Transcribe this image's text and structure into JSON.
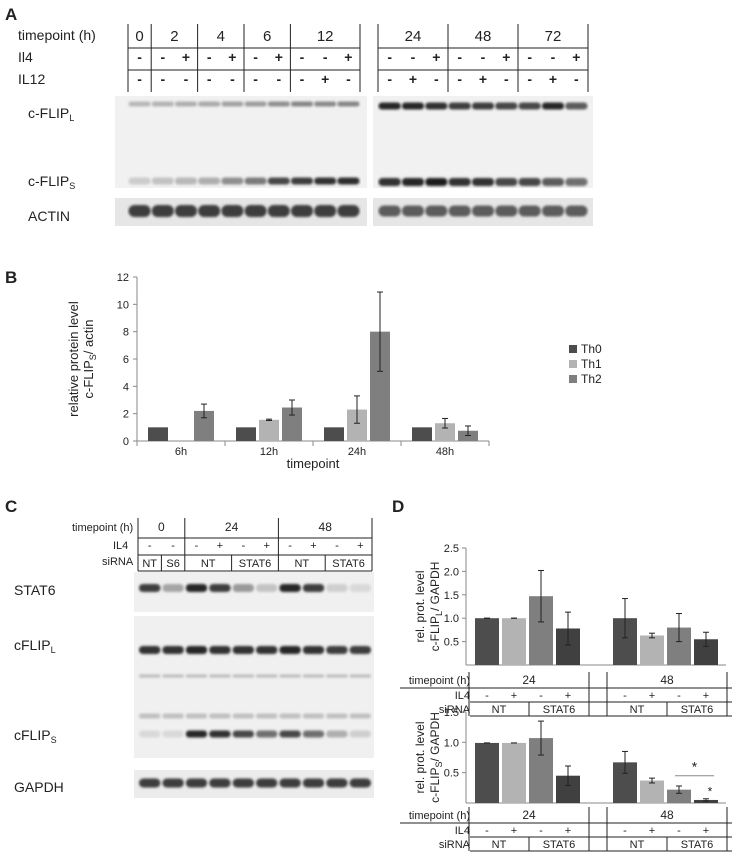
{
  "panels": {
    "A": {
      "label": "A",
      "row_labels": {
        "timepoint": "timepoint (h)",
        "il4": "Il4",
        "il12": "IL12"
      },
      "timepoints": [
        {
          "label": "0",
          "il4": [
            "-"
          ],
          "il12": [
            "-"
          ]
        },
        {
          "label": "2",
          "il4": [
            "-",
            "+"
          ],
          "il12": [
            "-",
            "-"
          ]
        },
        {
          "label": "4",
          "il4": [
            "-",
            "+"
          ],
          "il12": [
            "-",
            "-"
          ]
        },
        {
          "label": "6",
          "il4": [
            "-",
            "+"
          ],
          "il12": [
            "-",
            "-"
          ]
        },
        {
          "label": "12",
          "il4": [
            "-",
            "-",
            "+"
          ],
          "il12": [
            "-",
            "+",
            "-"
          ]
        },
        {
          "label": "24",
          "il4": [
            "-",
            "-",
            "+"
          ],
          "il12": [
            "-",
            "+",
            "-"
          ]
        },
        {
          "label": "48",
          "il4": [
            "-",
            "-",
            "+"
          ],
          "il12": [
            "-",
            "+",
            "-"
          ]
        },
        {
          "label": "72",
          "il4": [
            "-",
            "-",
            "+"
          ],
          "il12": [
            "-",
            "+",
            "-"
          ]
        }
      ],
      "blots": {
        "flipl": {
          "main": "c-FLIP",
          "sub": "L"
        },
        "flips": {
          "main": "c-FLIP",
          "sub": "S"
        },
        "actin": "ACTIN"
      }
    },
    "B": {
      "label": "B",
      "chart_data": {
        "type": "bar",
        "categories": [
          "6h",
          "12h",
          "24h",
          "48h"
        ],
        "xlabel": "timepoint",
        "ylabel_line1": "relative protein level",
        "ylabel_line2_main": "c-FLIP",
        "ylabel_line2_sub": "S",
        "ylabel_line2_rest": "/ actin",
        "ylim": [
          0,
          12
        ],
        "yticks": [
          0,
          2,
          4,
          6,
          8,
          10,
          12
        ],
        "legend_position": "right",
        "series": [
          {
            "name": "Th0",
            "color": "#4d4d4d",
            "values": [
              1,
              1,
              1,
              1
            ],
            "errors": [
              0,
              0,
              0,
              0
            ]
          },
          {
            "name": "Th1",
            "color": "#b3b3b3",
            "values": [
              null,
              1.55,
              2.3,
              1.3
            ],
            "errors": [
              0,
              0.05,
              1.0,
              0.35
            ]
          },
          {
            "name": "Th2",
            "color": "#7f7f7f",
            "values": [
              2.2,
              2.45,
              8.0,
              0.75
            ],
            "errors": [
              0.5,
              0.55,
              2.9,
              0.35
            ]
          }
        ]
      }
    },
    "C": {
      "label": "C",
      "row_labels": {
        "timepoint": "timepoint (h)",
        "il4": "IL4",
        "sirna": "siRNA"
      },
      "groups": [
        {
          "timepoint": "0",
          "il4": [
            "-",
            "-"
          ],
          "sirna": [
            "NT",
            "S6"
          ]
        },
        {
          "timepoint": "24",
          "il4": [
            "-",
            "+",
            "-",
            "+"
          ],
          "sirna": [
            "NT",
            "STAT6"
          ]
        },
        {
          "timepoint": "48",
          "il4": [
            "-",
            "+",
            "-",
            "+"
          ],
          "sirna": [
            "NT",
            "STAT6"
          ]
        }
      ],
      "blots": {
        "stat6": "STAT6",
        "flipl": {
          "main": "cFLIP",
          "sub": "L"
        },
        "flips": {
          "main": "cFLIP",
          "sub": "S"
        },
        "gapdh": "GAPDH"
      }
    },
    "D": {
      "label": "D",
      "chart_data": [
        {
          "type": "bar",
          "ylabel_line1": "rel. prot. level",
          "ylabel_line2_main": "c-FLIP",
          "ylabel_line2_sub": "L",
          "ylabel_line2_rest": "/ GAPDH",
          "ylim": [
            0,
            2.5
          ],
          "yticks": [
            "2.5",
            "2.0",
            "1.5",
            "1.0",
            "0.5"
          ],
          "ytick_values": [
            2.5,
            2.0,
            1.5,
            1.0,
            0.5
          ],
          "groups": [
            {
              "label": "24",
              "values": [
                1.0,
                1.0,
                1.47,
                0.78
              ],
              "errors": [
                0,
                0,
                0.55,
                0.35
              ]
            },
            {
              "label": "48",
              "values": [
                1.0,
                0.63,
                0.8,
                0.55
              ],
              "errors": [
                0.42,
                0.05,
                0.3,
                0.15
              ]
            }
          ],
          "bar_colors": [
            "#4d4d4d",
            "#b3b3b3",
            "#7f7f7f",
            "#404040"
          ],
          "row_labels": {
            "timepoint": "timepoint (h)",
            "il4": "IL4",
            "sirna": "siRNA"
          },
          "il4": [
            "-",
            "+",
            "-",
            "+"
          ],
          "sirna": [
            "NT",
            "STAT6"
          ]
        },
        {
          "type": "bar",
          "ylabel_line1": "rel. prot. level",
          "ylabel_line2_main": "c-FLIP",
          "ylabel_line2_sub": "S",
          "ylabel_line2_rest": "/ GAPDH",
          "ylim": [
            0,
            1.5
          ],
          "yticks": [
            "1.5",
            "1.0",
            "0.5"
          ],
          "ytick_values": [
            1.5,
            1.0,
            0.5
          ],
          "groups": [
            {
              "label": "24",
              "values": [
                0.99,
                0.99,
                1.07,
                0.45
              ],
              "errors": [
                0,
                0,
                0.28,
                0.16
              ]
            },
            {
              "label": "48",
              "values": [
                0.67,
                0.37,
                0.22,
                0.05
              ],
              "errors": [
                0.18,
                0.04,
                0.06,
                0.02
              ]
            }
          ],
          "bar_colors": [
            "#4d4d4d",
            "#b3b3b3",
            "#7f7f7f",
            "#404040"
          ],
          "significance": "*",
          "row_labels": {
            "timepoint": "timepoint (h)",
            "il4": "IL4",
            "sirna": "siRNA"
          },
          "il4": [
            "-",
            "+",
            "-",
            "+"
          ],
          "sirna": [
            "NT",
            "STAT6"
          ]
        }
      ]
    }
  }
}
